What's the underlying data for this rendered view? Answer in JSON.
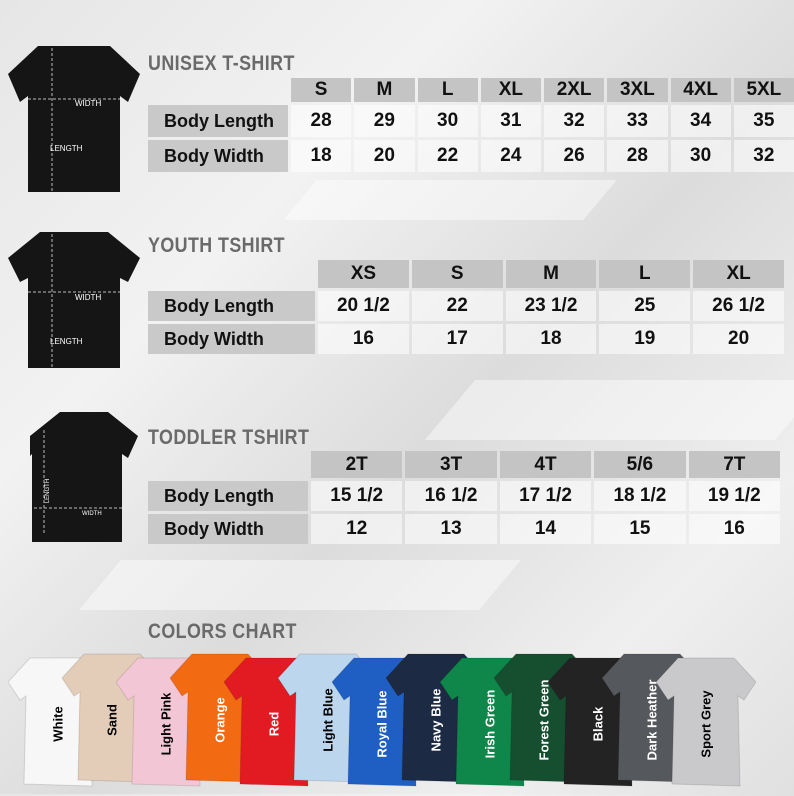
{
  "unisex": {
    "title": "UNISEX T-SHIRT",
    "width_label": "WIDTH",
    "length_label": "LENGTH",
    "sizes": [
      "S",
      "M",
      "L",
      "XL",
      "2XL",
      "3XL",
      "4XL",
      "5XL"
    ],
    "rows": [
      {
        "label": "Body Length",
        "values": [
          "28",
          "29",
          "30",
          "31",
          "32",
          "33",
          "34",
          "35"
        ]
      },
      {
        "label": "Body Width",
        "values": [
          "18",
          "20",
          "22",
          "24",
          "26",
          "28",
          "30",
          "32"
        ]
      }
    ]
  },
  "youth": {
    "title": "YOUTH TSHIRT",
    "width_label": "WIDTH",
    "length_label": "LENGTH",
    "sizes": [
      "XS",
      "S",
      "M",
      "L",
      "XL"
    ],
    "rows": [
      {
        "label": "Body Length",
        "values": [
          "20 1/2",
          "22",
          "23 1/2",
          "25",
          "26 1/2"
        ]
      },
      {
        "label": "Body Width",
        "values": [
          "16",
          "17",
          "18",
          "19",
          "20"
        ]
      }
    ]
  },
  "toddler": {
    "title": "TODDLER TSHIRT",
    "width_label": "WIDTH",
    "length_label": "LENGTH",
    "sizes": [
      "2T",
      "3T",
      "4T",
      "5/6",
      "7T"
    ],
    "rows": [
      {
        "label": "Body Length",
        "values": [
          "15 1/2",
          "16 1/2",
          "17 1/2",
          "18 1/2",
          "19 1/2"
        ]
      },
      {
        "label": "Body Width",
        "values": [
          "12",
          "13",
          "14",
          "15",
          "16"
        ]
      }
    ]
  },
  "colors": {
    "title": "COLORS CHART",
    "items": [
      {
        "name": "White",
        "hex": "#f7f7f7",
        "text": "#000"
      },
      {
        "name": "Sand",
        "hex": "#e3cdb8",
        "text": "#000"
      },
      {
        "name": "Light Pink",
        "hex": "#f3c6d6",
        "text": "#000"
      },
      {
        "name": "Orange",
        "hex": "#f26a12",
        "text": "#fff"
      },
      {
        "name": "Red",
        "hex": "#e21b23",
        "text": "#fff"
      },
      {
        "name": "Light Blue",
        "hex": "#bcd6ee",
        "text": "#000"
      },
      {
        "name": "Royal Blue",
        "hex": "#1f5fc4",
        "text": "#fff"
      },
      {
        "name": "Navy Blue",
        "hex": "#1d2a44",
        "text": "#fff"
      },
      {
        "name": "Irish Green",
        "hex": "#10874a",
        "text": "#fff"
      },
      {
        "name": "Forest Green",
        "hex": "#154f30",
        "text": "#fff"
      },
      {
        "name": "Black",
        "hex": "#232323",
        "text": "#fff"
      },
      {
        "name": "Dark Heather",
        "hex": "#55585c",
        "text": "#fff"
      },
      {
        "name": "Sport Grey",
        "hex": "#c9c9cb",
        "text": "#000"
      }
    ]
  }
}
